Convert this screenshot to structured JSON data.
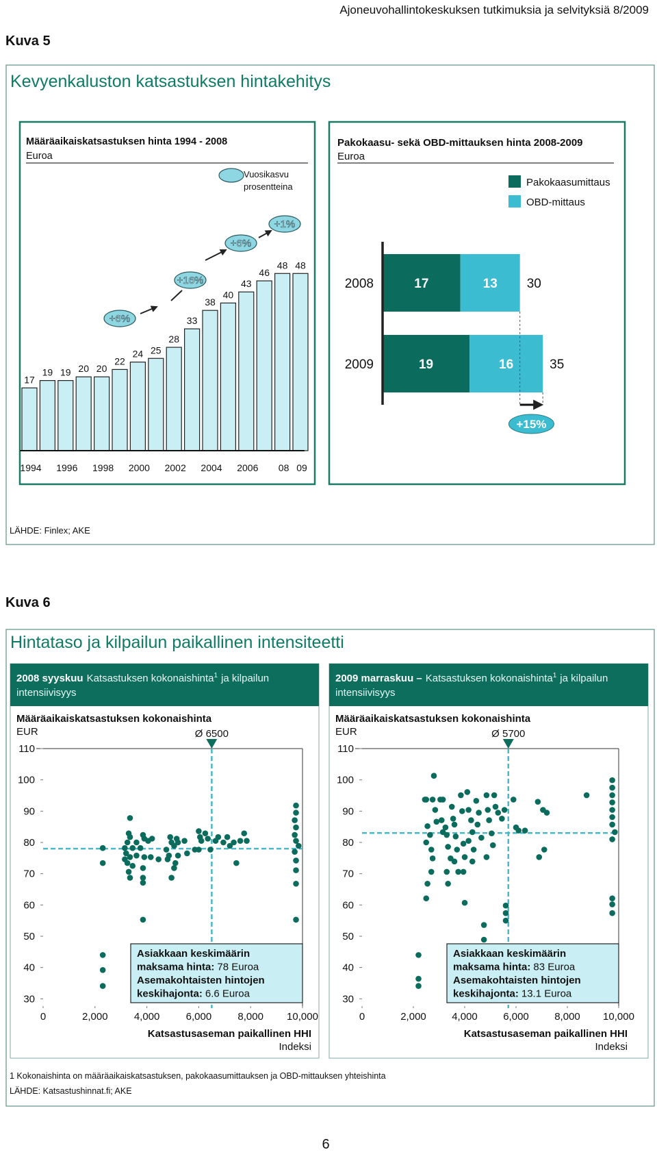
{
  "header": "Ajoneuvohallintokeskuksen tutkimuksia ja selvityksiä 8/2009",
  "figures": [
    {
      "label": "Kuva 5",
      "title": "Kevyenkaluston katsastuksen hintakehitys",
      "source": "LÄHDE: Finlex; AKE"
    },
    {
      "label": "Kuva 6",
      "title": "Hintataso ja kilpailun paikallinen intensiteetti",
      "panels": [
        {
          "date": "2008 syyskuu",
          "text": "Katsastuksen kokonaishinta",
          "ref": "1",
          "text2": "ja kilpailun",
          "text3": "intensiivisyys"
        },
        {
          "date": "2009 marraskuu –",
          "text": "Katsastuksen kokonaishinta",
          "ref": "1",
          "text2": "ja kilpailun",
          "text3": "intensiivisyys"
        }
      ],
      "footnote": "1 Kokonaishinta on määräaikaiskatsastuksen, pakokaasumittauksen ja OBD-mittauksen yhteishinta",
      "source": "LÄHDE: Katsastushinnat.fi; AKE"
    }
  ],
  "chart_data": [
    {
      "type": "bar",
      "title": "Määräaikaiskatsastuksen hinta 1994 - 2008",
      "subtitle": "Euroa",
      "categories": [
        "1994",
        null,
        "1996",
        null,
        "1998",
        null,
        "2000",
        null,
        "2002",
        null,
        "2004",
        null,
        "2006",
        null,
        "08",
        "09"
      ],
      "values": [
        17,
        19,
        19,
        20,
        20,
        22,
        24,
        25,
        28,
        33,
        38,
        40,
        43,
        46,
        48,
        48
      ],
      "color": "#c9eef3",
      "legend": [
        "Vuosikasvu",
        "prosentteina"
      ],
      "annotations": [
        "+6%",
        "+16%",
        "+6%",
        "+1%"
      ]
    },
    {
      "type": "stacked_bar",
      "title": "Pakokaasu- sekä OBD-mittauksen hinta 2008-2009",
      "subtitle": "Euroa",
      "categories": [
        "2008",
        "2009"
      ],
      "series": [
        {
          "name": "Pakokaasumittaus",
          "color": "#0b6b5c",
          "values": [
            17,
            19
          ]
        },
        {
          "name": "OBD-mittaus",
          "color": "#3bbcd0",
          "values": [
            13,
            16
          ]
        }
      ],
      "totals": [
        30,
        35
      ],
      "change": "+15%"
    },
    {
      "type": "scatter",
      "title": "Määräaikaiskatsastuksen kokonaishinta",
      "y_unit": "EUR",
      "xlabel": "Katsastusaseman paikallinen HHI",
      "x_unit": "Indeksi",
      "color": "#0b6b5c",
      "xlim": [
        0,
        10000
      ],
      "ylim": [
        27,
        110
      ],
      "xticks": [
        0,
        {
          "value": 2000,
          "label": "2,000"
        },
        {
          "value": 4000,
          "label": "4,000"
        },
        {
          "value": 6000,
          "label": "6,000"
        },
        {
          "value": 8000,
          "label": "8,000"
        },
        {
          "value": 10000,
          "label": "10,000"
        }
      ],
      "yticks": [
        30,
        40,
        50,
        60,
        70,
        80,
        90,
        100,
        110
      ],
      "x_mean": 6500,
      "x_mean_label": "Ø 6500",
      "y_mean": 78,
      "note": [
        [
          "Asiakkaan keskimäärin"
        ],
        [
          "maksama hinta:",
          "78 Euroa"
        ],
        [
          "Asemakohtaisten hintojen"
        ],
        [
          "keskihajonta:",
          "6.6 Euroa"
        ]
      ],
      "x": [
        2300,
        2300,
        2300,
        2300,
        2300,
        3150,
        3150,
        3350,
        3300,
        3350,
        3250,
        3450,
        3200,
        3350,
        3250,
        3450,
        3300,
        3350,
        3600,
        3600,
        3850,
        3900,
        3750,
        3900,
        3850,
        3850,
        3850,
        3850,
        4050,
        4200,
        4150,
        4450,
        4750,
        4800,
        4900,
        4950,
        4850,
        5050,
        5150,
        5200,
        5100,
        5050,
        4950,
        5200,
        5450,
        5550,
        5850,
        6000,
        6050,
        6100,
        6000,
        6250,
        6350,
        6450,
        6650,
        6750,
        6950,
        7100,
        7200,
        7350,
        7450,
        7600,
        7750,
        7850,
        9750,
        9750,
        9700,
        9750,
        9700,
        9750,
        9850,
        9700,
        9750,
        9750,
        9750,
        9750
      ],
      "values": [
        78.2,
        73.4,
        44,
        39.2,
        34.1,
        78.2,
        74.6,
        87.8,
        82.9,
        81.7,
        80,
        78.2,
        76.5,
        75.3,
        73.4,
        72.5,
        70.6,
        68.7,
        80,
        75.8,
        82.4,
        81.2,
        78.2,
        75.3,
        71.8,
        68.7,
        67.1,
        55.3,
        80.5,
        81.2,
        75.3,
        74.6,
        77.7,
        74.6,
        81.7,
        80,
        75.8,
        78.9,
        81.2,
        80,
        73.4,
        71.8,
        68.7,
        75.8,
        80.5,
        76.5,
        77.7,
        83.6,
        81.7,
        80.5,
        77.7,
        82.9,
        81.2,
        77.7,
        80.5,
        81.7,
        80,
        81.7,
        78.9,
        80,
        73.4,
        80.5,
        82.9,
        80.5,
        91.8,
        89.5,
        87.1,
        84.8,
        82.4,
        80.5,
        78.9,
        77,
        74.2,
        71.1,
        66.8,
        55.3
      ]
    },
    {
      "type": "scatter",
      "title": "Määräaikaiskatsastuksen kokonaishinta",
      "y_unit": "EUR",
      "xlabel": "Katsastusaseman paikallinen HHI",
      "x_unit": "Indeksi",
      "color": "#0b6b5c",
      "xlim": [
        0,
        10000
      ],
      "ylim": [
        27,
        110
      ],
      "xticks": [
        0,
        {
          "value": 2000,
          "label": "2,000"
        },
        {
          "value": 4000,
          "label": "4,000"
        },
        {
          "value": 6000,
          "label": "6,000"
        },
        {
          "value": 8000,
          "label": "8,000"
        },
        {
          "value": 10000,
          "label": "10,000"
        }
      ],
      "yticks": [
        30,
        40,
        50,
        60,
        70,
        80,
        90,
        100,
        110
      ],
      "x_mean": 5700,
      "x_mean_label": "Ø 5700",
      "y_mean": 83,
      "note": [
        [
          "Asiakkaan keskimäärin"
        ],
        [
          "maksama hinta:",
          "83 Euroa"
        ],
        [
          "Asemakohtaisten hintojen"
        ],
        [
          "keskihajonta:",
          "13.1 Euroa"
        ]
      ],
      "x": [
        2200,
        2200,
        2200,
        2500,
        2500,
        2500,
        2450,
        2550,
        2550,
        2650,
        2700,
        2700,
        2750,
        2750,
        2800,
        2850,
        2900,
        3050,
        3150,
        3150,
        3100,
        3250,
        3300,
        3300,
        3350,
        3350,
        3450,
        3500,
        3550,
        3600,
        3600,
        3650,
        3700,
        3750,
        3850,
        3900,
        3950,
        3950,
        4000,
        4000,
        4100,
        4150,
        4150,
        4250,
        4300,
        4300,
        4350,
        4450,
        4550,
        4500,
        4650,
        4750,
        4750,
        4850,
        4850,
        4900,
        4950,
        5050,
        5100,
        5150,
        5200,
        5300,
        5450,
        5550,
        5600,
        5600,
        5600,
        5900,
        6000,
        6100,
        6350,
        6850,
        7050,
        7200,
        7100,
        6900,
        8750,
        9750,
        9750,
        9750,
        9750,
        9750,
        9750,
        9750,
        9850,
        9750,
        9750,
        9750,
        9750
      ],
      "values": [
        44,
        36.4,
        34.1,
        80,
        93.7,
        62.1,
        93.7,
        85.2,
        66.8,
        82.4,
        77.7,
        70.6,
        74.9,
        93.7,
        101.3,
        90.4,
        86.6,
        93.7,
        93.7,
        83.3,
        87.1,
        84.8,
        82.4,
        70.6,
        78.6,
        66.8,
        74.9,
        91.4,
        87.6,
        85.7,
        73.9,
        81.9,
        77.7,
        70.6,
        95.1,
        90,
        79.6,
        70.6,
        75.3,
        60.7,
        96.1,
        90.4,
        80.5,
        87.1,
        83.3,
        73.9,
        77.7,
        93.3,
        89.5,
        85.7,
        81.5,
        53.6,
        48.9,
        95.1,
        75.3,
        90.4,
        87.1,
        82.9,
        79.1,
        95.1,
        91.4,
        89.5,
        87.6,
        90.4,
        59.8,
        57.4,
        55,
        93.7,
        84.8,
        83.8,
        83.8,
        93,
        90.4,
        89.5,
        77.7,
        75.3,
        95.1,
        99.9,
        97.5,
        95.1,
        92.8,
        90.4,
        88.1,
        85.7,
        83.3,
        81,
        62.1,
        60.2,
        57.4
      ]
    }
  ],
  "page_number": "6"
}
